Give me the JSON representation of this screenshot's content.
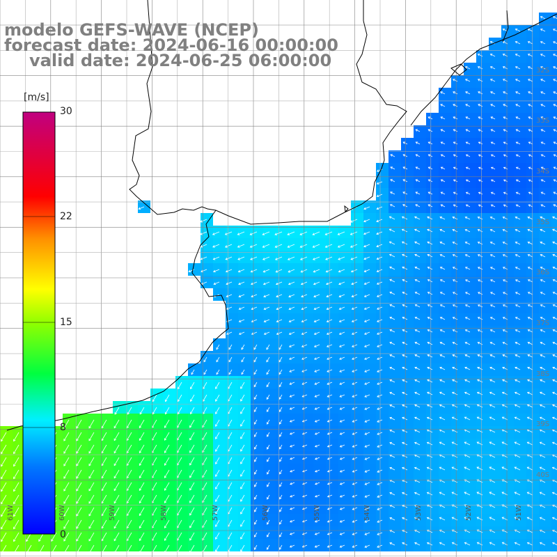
{
  "header": {
    "line1": "modelo GEFS-WAVE (NCEP)",
    "line2": "forecast date: 2024-06-16 00:00:00",
    "line3": "valid date: 2024-06-25 06:00:00"
  },
  "colorbar": {
    "unit": "[m/s]",
    "ticks": [
      "30",
      "22",
      "15",
      "8",
      "0"
    ]
  },
  "axes": {
    "lon_labels": [
      "61W",
      "60W",
      "59W",
      "58W",
      "57W",
      "56W",
      "55W",
      "54W",
      "53W",
      "52W",
      "51W"
    ],
    "lat_labels": [
      "32S",
      "33S",
      "34S",
      "35S",
      "36S",
      "37S",
      "38S",
      "39S",
      "40S"
    ]
  },
  "map_layers": {
    "field": "wind speed",
    "vectors": "wind direction arrows",
    "land_color": "#ffffff",
    "grid_color": "#808080",
    "coast_color": "#000000"
  }
}
